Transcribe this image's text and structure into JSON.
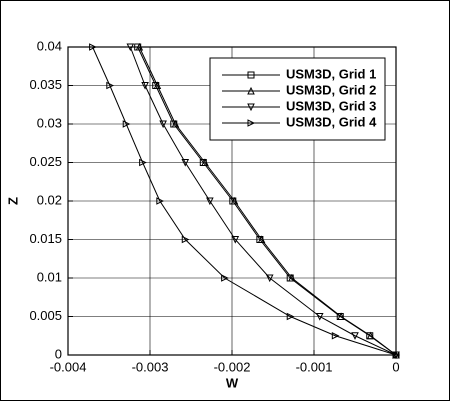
{
  "chart_data": {
    "type": "line",
    "x_label": "W",
    "y_label": "Z",
    "xlim": [
      -0.004,
      0
    ],
    "ylim": [
      0,
      0.04
    ],
    "xticks": [
      -0.004,
      -0.003,
      -0.002,
      -0.001,
      0
    ],
    "yticks": [
      0,
      0.005,
      0.01,
      0.015,
      0.02,
      0.025,
      0.03,
      0.035,
      0.04
    ],
    "grid": true,
    "legend": "upper right",
    "series": [
      {
        "name": "USM3D, Grid 1",
        "color": "#000000",
        "marker": "square",
        "x": [
          -0.00315,
          -0.00293,
          -0.00271,
          -0.00235,
          -0.00199,
          -0.00166,
          -0.00129,
          -0.00068,
          -0.00032,
          0
        ],
        "values": [
          0.04,
          0.035,
          0.03,
          0.025,
          0.02,
          0.015,
          0.01,
          0.005,
          0.0025,
          0
        ]
      },
      {
        "name": "USM3D, Grid 2",
        "color": "#000000",
        "marker": "triangle-up",
        "x": [
          -0.00313,
          -0.00291,
          -0.00269,
          -0.00233,
          -0.00197,
          -0.00164,
          -0.00127,
          -0.00067,
          -0.00031,
          0
        ],
        "values": [
          0.04,
          0.035,
          0.03,
          0.025,
          0.02,
          0.015,
          0.01,
          0.005,
          0.0025,
          0
        ]
      },
      {
        "name": "USM3D, Grid 3",
        "color": "#000000",
        "marker": "triangle-down",
        "x": [
          -0.00324,
          -0.00306,
          -0.00284,
          -0.00257,
          -0.00227,
          -0.00196,
          -0.00154,
          -0.00093,
          -0.0005,
          0
        ],
        "values": [
          0.04,
          0.035,
          0.03,
          0.025,
          0.02,
          0.015,
          0.01,
          0.005,
          0.0025,
          0
        ]
      },
      {
        "name": "USM3D, Grid 4",
        "color": "#000000",
        "marker": "triangle-right",
        "x": [
          -0.0037,
          -0.00349,
          -0.00329,
          -0.00309,
          -0.00288,
          -0.00257,
          -0.00209,
          -0.00129,
          -0.00074,
          0
        ],
        "values": [
          0.04,
          0.035,
          0.03,
          0.025,
          0.02,
          0.015,
          0.01,
          0.005,
          0.0025,
          0
        ]
      }
    ]
  }
}
